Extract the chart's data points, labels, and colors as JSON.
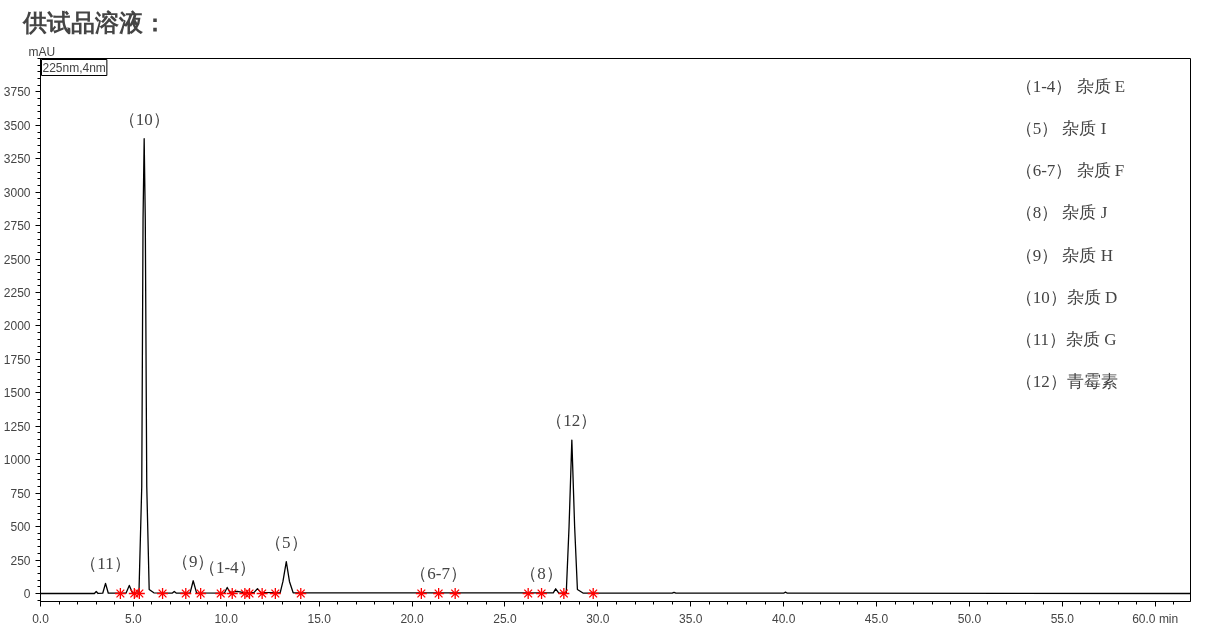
{
  "chart_data": {
    "type": "line",
    "title": "供试品溶液：",
    "ylabel": "mAU",
    "xlim": [
      0,
      61.9
    ],
    "ylim": [
      -60,
      4000
    ],
    "xticks": [
      {
        "value": 0,
        "label": "0.0"
      },
      {
        "value": 5,
        "label": "5.0"
      },
      {
        "value": 10,
        "label": "10.0"
      },
      {
        "value": 15,
        "label": "15.0"
      },
      {
        "value": 20,
        "label": "20.0"
      },
      {
        "value": 25,
        "label": "25.0"
      },
      {
        "value": 30,
        "label": "30.0"
      },
      {
        "value": 35,
        "label": "35.0"
      },
      {
        "value": 40,
        "label": "40.0"
      },
      {
        "value": 45,
        "label": "45.0"
      },
      {
        "value": 50,
        "label": "50.0"
      },
      {
        "value": 55,
        "label": "55.0"
      },
      {
        "value": 60,
        "label": "60.0 min"
      }
    ],
    "yticks": [
      0,
      250,
      500,
      750,
      1000,
      1250,
      1500,
      1750,
      2000,
      2250,
      2500,
      2750,
      3000,
      3250,
      3500,
      3750
    ],
    "grid": false,
    "series": [
      {
        "color": "#000000",
        "x": [
          0,
          2.9,
          3.0,
          3.1,
          3.35,
          3.5,
          3.65,
          4.6,
          4.78,
          4.95,
          5.3,
          5.45,
          5.52,
          5.58,
          5.64,
          5.72,
          5.85,
          6.1,
          7.1,
          7.2,
          7.3,
          8.05,
          8.22,
          8.4,
          9.9,
          10.05,
          10.2,
          10.6,
          11.0,
          11.5,
          11.68,
          11.85,
          12.9,
          13.05,
          13.23,
          13.4,
          13.6,
          27.6,
          27.73,
          27.9,
          28.3,
          28.45,
          28.6,
          28.75,
          28.9,
          29.2,
          34.0,
          34.1,
          34.2,
          40.0,
          40.1,
          40.2,
          61.9
        ],
        "values": [
          0,
          0,
          15,
          0,
          2,
          75,
          2,
          2,
          60,
          3,
          5,
          800,
          2800,
          3400,
          2800,
          800,
          30,
          5,
          3,
          15,
          3,
          3,
          95,
          5,
          3,
          45,
          8,
          15,
          5,
          8,
          36,
          8,
          5,
          90,
          238,
          90,
          5,
          5,
          35,
          2,
          5,
          500,
          1147,
          500,
          30,
          3,
          2,
          8,
          2,
          2,
          10,
          2,
          0
        ]
      },
      {
        "type": "scatter",
        "marker": "cross",
        "color": "#ff0000",
        "x": [
          4.3,
          5.05,
          5.32,
          6.57,
          7.82,
          8.62,
          9.7,
          10.32,
          11.0,
          11.25,
          11.93,
          12.64,
          14.01,
          20.5,
          21.43,
          22.32,
          26.25,
          26.97,
          28.17,
          29.75
        ],
        "values": [
          0,
          0,
          0,
          0,
          0,
          0,
          0,
          0,
          0,
          0,
          0,
          0,
          0,
          0,
          0,
          0,
          0,
          0,
          0,
          0
        ]
      }
    ],
    "annotations": [
      "225nm,4nm",
      "（1-4）  杂质 E",
      "（5）  杂质 I",
      "（6-7）  杂质 F",
      "（8）  杂质 J",
      "（9）  杂质 H",
      "（10）杂质 D",
      "（11）杂质 G",
      "（12）青霉素",
      {
        "text": "（11）",
        "x": 3.5,
        "y": 75
      },
      {
        "text": "（10）",
        "x": 5.58,
        "y": 3400
      },
      {
        "text": "（9）",
        "x": 8.22,
        "y": 95
      },
      {
        "text": "（1-4）",
        "x": 10.05,
        "y": 45
      },
      {
        "text": "（5）",
        "x": 13.23,
        "y": 238
      },
      {
        "text": "（6-7）",
        "x": 21.43,
        "y": 0
      },
      {
        "text": "（8）",
        "x": 26.97,
        "y": 0
      },
      {
        "text": "（12）",
        "x": 28.6,
        "y": 1147
      }
    ]
  }
}
